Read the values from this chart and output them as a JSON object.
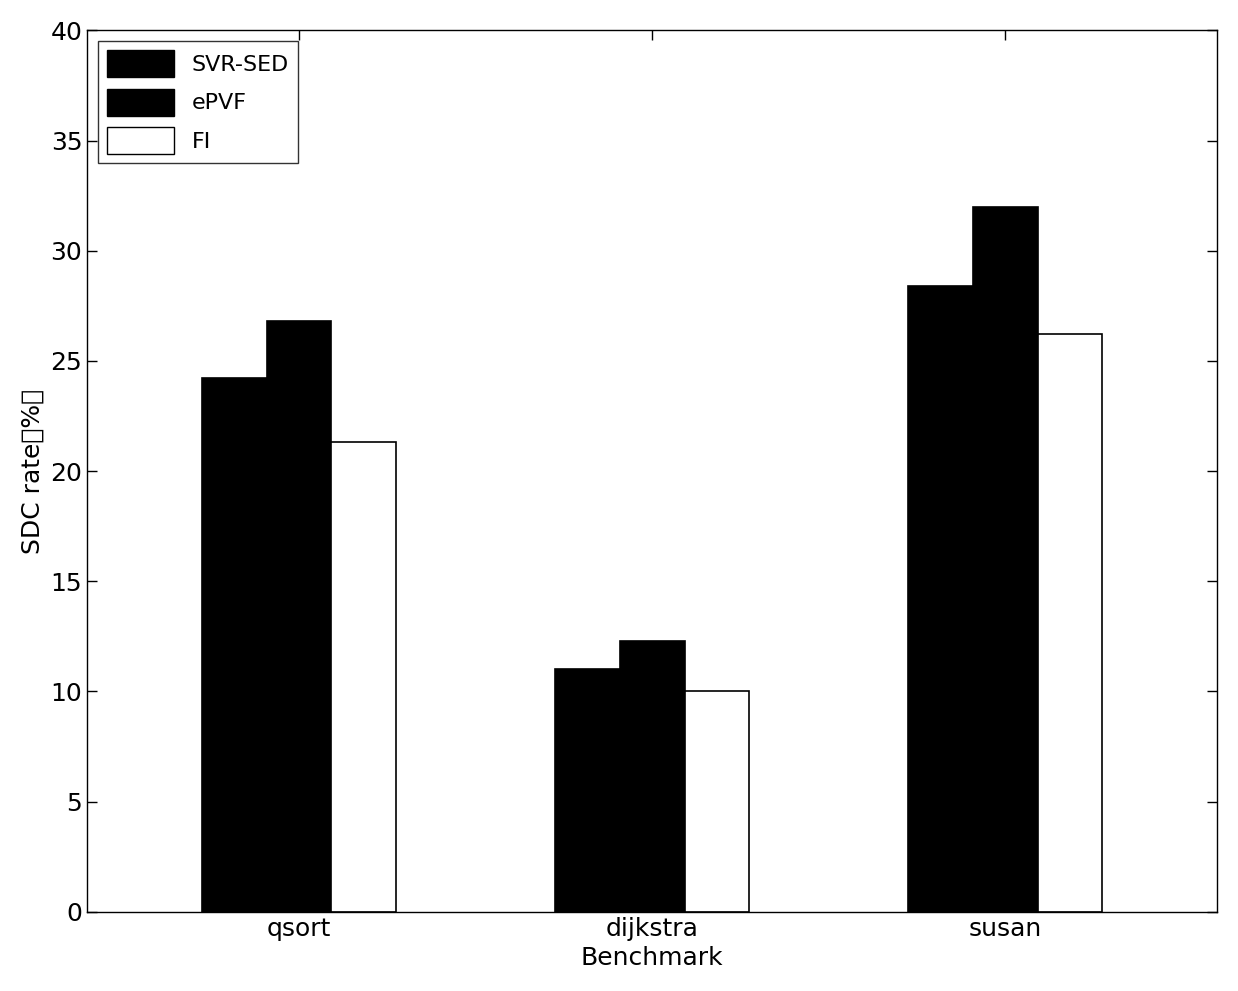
{
  "categories": [
    "qsort",
    "dijkstra",
    "susan"
  ],
  "svr_sed": [
    24.2,
    11.0,
    28.4
  ],
  "epvf": [
    26.8,
    12.3,
    32.0
  ],
  "fi": [
    21.3,
    10.0,
    26.2
  ],
  "bar_colors": {
    "svr_sed": "#000000",
    "epvf": "#000000",
    "fi": "#ffffff"
  },
  "bar_edgecolor": "#000000",
  "legend_labels": [
    "SVR-SED",
    "ePVF",
    "FI"
  ],
  "xlabel": "Benchmark",
  "ylabel": "SDC rate（%）",
  "ylim": [
    0,
    40
  ],
  "yticks": [
    0,
    5,
    10,
    15,
    20,
    25,
    30,
    35,
    40
  ],
  "bar_width": 0.55,
  "group_centers": [
    1.5,
    4.5,
    7.5
  ],
  "background_color": "#ffffff",
  "axis_fontsize": 18,
  "tick_fontsize": 18,
  "legend_fontsize": 16
}
